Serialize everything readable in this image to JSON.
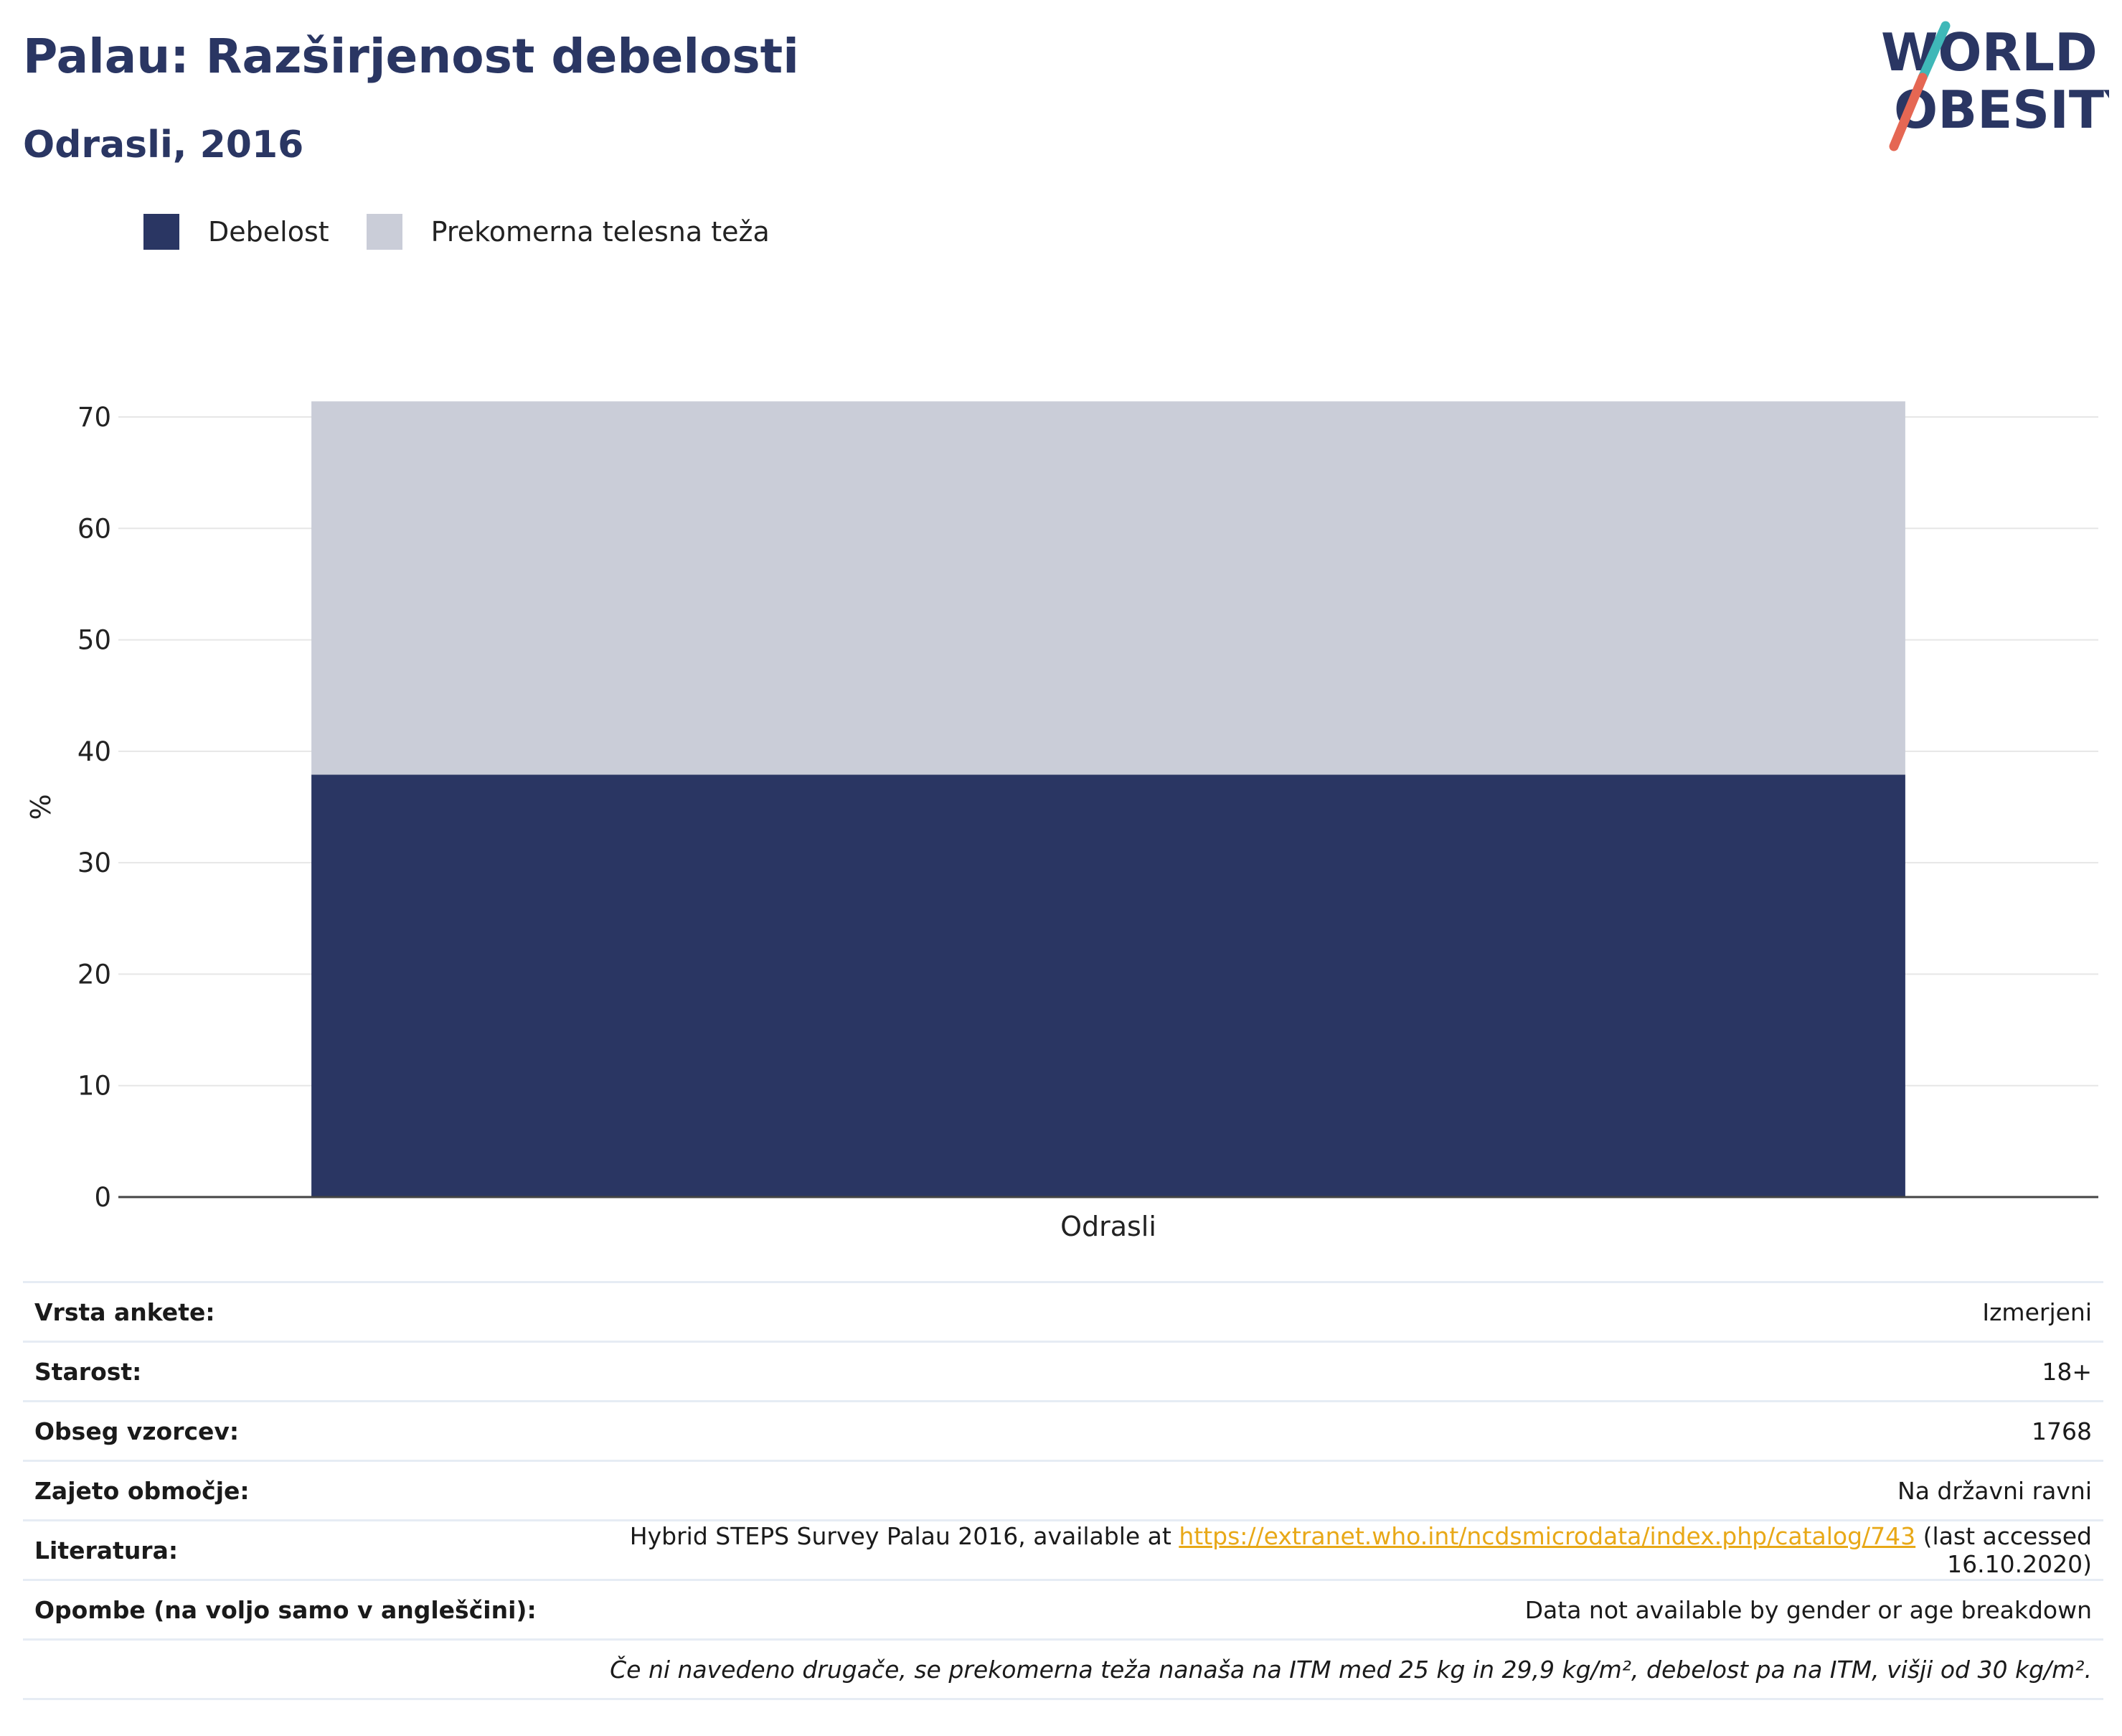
{
  "header": {
    "title": "Palau: Razširjenost debelosti",
    "subtitle": "Odrasli, 2016",
    "logo_text": "WORLD OBESITY"
  },
  "colors": {
    "title": "#2a3663",
    "obesity": "#2a3663",
    "overweight": "#cacdd8",
    "link": "#e8a817",
    "logo_teal": "#3fb8b8",
    "logo_red": "#e56753"
  },
  "chart_data": {
    "type": "bar",
    "stacked": true,
    "categories": [
      "Odrasli"
    ],
    "series": [
      {
        "name": "Debelost",
        "values": [
          37.9
        ],
        "color": "#2a3663"
      },
      {
        "name": "Prekomerna telesna teža",
        "values": [
          33.5
        ],
        "color": "#cacdd8"
      }
    ],
    "ylabel": "%",
    "xlabel": "",
    "ylim": [
      0,
      70
    ],
    "yticks": [
      0,
      10,
      20,
      30,
      40,
      50,
      60,
      70
    ],
    "grid": true,
    "legend": "top-left"
  },
  "info": {
    "rows": [
      {
        "key": "Vrsta ankete:",
        "value": "Izmerjeni"
      },
      {
        "key": "Starost:",
        "value": "18+"
      },
      {
        "key": "Obseg vzorcev:",
        "value": "1768"
      },
      {
        "key": "Zajeto območje:",
        "value": "Na državni ravni"
      }
    ],
    "reference": {
      "key": "Literatura:",
      "prefix": "Hybrid STEPS Survey Palau 2016, available at ",
      "link": "https://extranet.who.int/ncdsmicrodata/index.php/catalog/743",
      "suffix": " (last accessed 16.10.2020)"
    },
    "notes": {
      "key": "Opombe (na voljo samo v angleščini):",
      "value": "Data not available by gender or age breakdown"
    },
    "footnote": "Če ni navedeno drugače, se prekomerna teža nanaša na ITM med 25 kg in 29,9 kg/m², debelost pa na ITM, višji od 30 kg/m²."
  }
}
